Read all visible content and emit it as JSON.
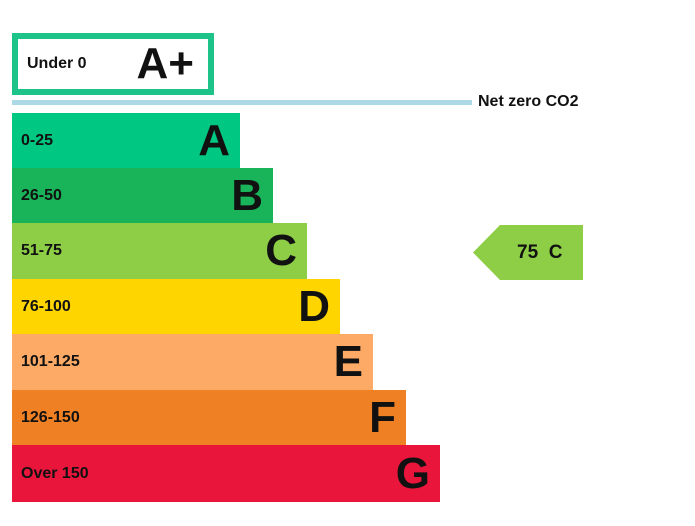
{
  "chart_data": {
    "type": "bar",
    "top_band": {
      "range": "Under 0",
      "letter": "A+",
      "color": "#1ec389"
    },
    "net_zero_label": "Net zero CO2",
    "net_zero_color": "#add8e6",
    "bands": [
      {
        "range": "0-25",
        "letter": "A",
        "color": "#00c781"
      },
      {
        "range": "26-50",
        "letter": "B",
        "color": "#19b459"
      },
      {
        "range": "51-75",
        "letter": "C",
        "color": "#8dce46"
      },
      {
        "range": "76-100",
        "letter": "D",
        "color": "#ffd500"
      },
      {
        "range": "101-125",
        "letter": "E",
        "color": "#fcaa65"
      },
      {
        "range": "126-150",
        "letter": "F",
        "color": "#ef8023"
      },
      {
        "range": "Over 150",
        "letter": "G",
        "color": "#e9153b"
      }
    ],
    "current": {
      "value": 75,
      "letter": "C",
      "label": "75  C",
      "color": "#8dce46"
    }
  }
}
